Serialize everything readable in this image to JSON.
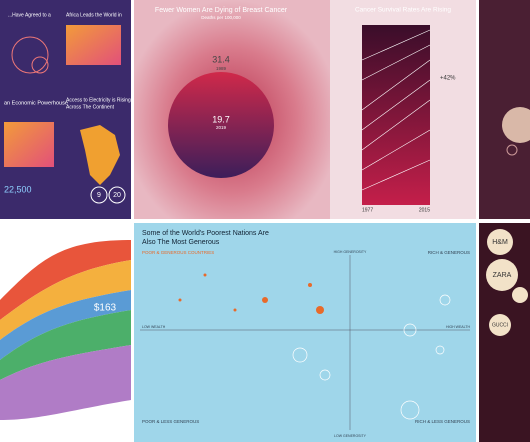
{
  "africa": {
    "heading_1": "Africa Leads the World in",
    "heading_2": "an Economic Powerhouse",
    "heading_3": "Access to Electricity is Rising",
    "heading_4": "Across The Continent",
    "stat_1": "22,500",
    "stat_2": "9",
    "stat_3": "20"
  },
  "breast_cancer": {
    "title": "Fewer Women Are Dying of Breast Cancer",
    "subtitle": "Deaths per 100,000",
    "value_1": "31.4",
    "year_1": "1989",
    "value_2": "19.7",
    "year_2": "2019"
  },
  "survival": {
    "title": "Cancer Survival Rates Are Rising",
    "change": "+42%",
    "start": "1977",
    "end": "2015"
  },
  "stream": {
    "value": "$163"
  },
  "generosity": {
    "title_1": "Some of the World's Poorest Nations Are",
    "title_2": "Also The Most Generous",
    "quadrant_1": "POOR & GENEROUS COUNTRIES",
    "quadrant_2": "RICH & GENEROUS",
    "quadrant_3": "POOR & LESS GENEROUS",
    "quadrant_4": "RICH & LESS GENEROUS",
    "high": "HIGH GENEROSITY",
    "low": "LOW GENEROSITY",
    "low_wealth": "LOW WEALTH",
    "high_wealth": "HIGH WEALTH"
  },
  "brands": {
    "brand_1": "H&M",
    "brand_2": "ZARA",
    "brand_3": "GUCCI"
  }
}
